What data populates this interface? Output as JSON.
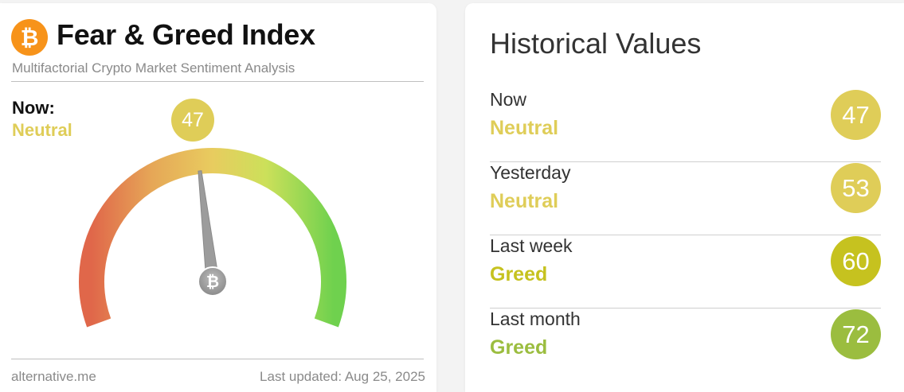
{
  "index_card": {
    "brand_icon": "bitcoin-icon",
    "brand_glyph": "₿",
    "title": "Fear & Greed Index",
    "subtitle": "Multifactorial Crypto Market Sentiment Analysis",
    "now_label": "Now:",
    "now_classification": "Neutral",
    "now_value": "47",
    "now_value_number": 47,
    "gauge_min": 0,
    "gauge_max": 100,
    "needle_hub_icon": "bitcoin-icon",
    "footer_source": "alternative.me",
    "footer_updated": "Last updated: Aug 25, 2025",
    "colors": {
      "neutral": "#dfcd58",
      "fear_end": "#e0674a",
      "greed_end": "#6fd14e"
    }
  },
  "historical": {
    "title": "Historical Values",
    "rows": [
      {
        "period": "Now",
        "classification": "Neutral",
        "value": "47",
        "color": "#dfcd58"
      },
      {
        "period": "Yesterday",
        "classification": "Neutral",
        "value": "53",
        "color": "#dfcd58"
      },
      {
        "period": "Last week",
        "classification": "Greed",
        "value": "60",
        "color": "#c6c21f"
      },
      {
        "period": "Last month",
        "classification": "Greed",
        "value": "72",
        "color": "#9bbd3f"
      }
    ]
  }
}
